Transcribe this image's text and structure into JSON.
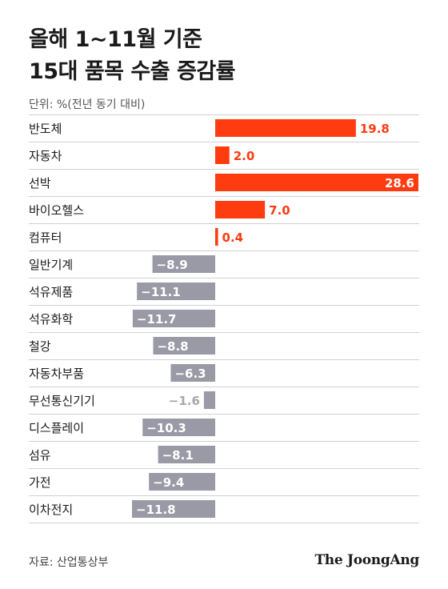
{
  "header": {
    "title_line1": "올해 1~11월 기준",
    "title_line2": "15대 품목 수출 증감률",
    "unit": "단위: %(전년 동기 대비)"
  },
  "footer": {
    "source": "자료: 산업통상부",
    "brand": "The JoongAng"
  },
  "colors": {
    "positive": "#ff3b10",
    "negative": "#999aa6",
    "divider": "#d0d0d0",
    "negative_label_small": "#a6a7b0"
  },
  "chart_data": {
    "type": "bar",
    "orientation": "horizontal",
    "title": "올해 1~11월 기준 15대 품목 수출 증감률",
    "unit": "단위: %(전년 동기 대비)",
    "categories": [
      "반도체",
      "자동차",
      "선박",
      "바이오헬스",
      "컴퓨터",
      "일반기계",
      "석유제품",
      "석유화학",
      "철강",
      "자동차부품",
      "무선통신기기",
      "디스플레이",
      "섬유",
      "가전",
      "이차전지"
    ],
    "values": [
      19.8,
      2.0,
      28.6,
      7.0,
      0.4,
      -8.9,
      -11.1,
      -11.7,
      -8.8,
      -6.3,
      -1.6,
      -10.3,
      -8.1,
      -9.4,
      -11.8
    ],
    "value_labels": [
      "19.8",
      "2.0",
      "28.6",
      "7.0",
      "0.4",
      "−8.9",
      "−11.1",
      "−11.7",
      "−8.8",
      "−6.3",
      "−1.6",
      "−10.3",
      "−8.1",
      "−9.4",
      "−11.8"
    ],
    "xlim": [
      -11.8,
      28.6
    ],
    "grid": false,
    "legend": "none"
  }
}
